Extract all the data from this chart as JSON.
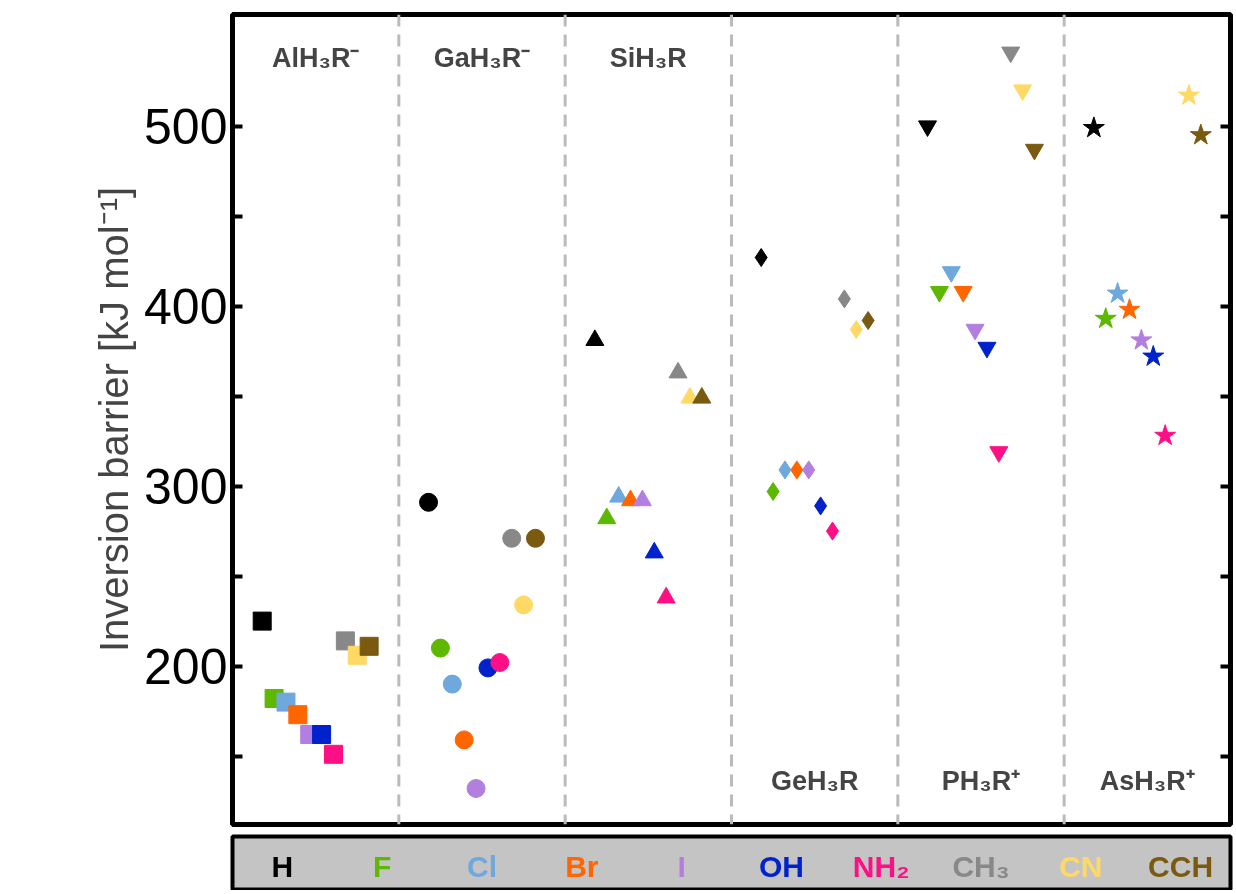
{
  "chart_data": {
    "type": "scatter",
    "ylabel": "Inversion barrier [kJ mol⁻¹]",
    "categories": [
      "AlH₃R⁻",
      "GaH₃R⁻",
      "SiH₃R",
      "GeH₃R",
      "PH₃R⁺",
      "AsH₃R⁺"
    ],
    "ylim": [
      112,
      562
    ],
    "yticks": [
      {
        "value": 150,
        "label": null
      },
      200,
      {
        "value": 250,
        "label": null
      },
      300,
      {
        "value": 350,
        "label": null
      },
      400,
      {
        "value": 450,
        "label": null
      },
      500
    ],
    "marker": [
      "square",
      "circle",
      "triangle",
      "diamond",
      "inverted_triangle",
      "star"
    ],
    "series": [
      {
        "name": "H",
        "color": "#000000",
        "values": [
          225,
          291,
          381,
          427,
          500,
          499
        ]
      },
      {
        "name": "F",
        "color": "#5cb800",
        "values": [
          182,
          210,
          282,
          297,
          408,
          393
        ]
      },
      {
        "name": "Cl",
        "color": "#6fa8dc",
        "values": [
          180,
          190,
          294,
          309,
          419,
          407
        ]
      },
      {
        "name": "Br",
        "color": "#ff6600",
        "values": [
          173,
          159,
          292,
          309,
          408,
          398
        ]
      },
      {
        "name": "I",
        "color": "#b27fe0",
        "values": [
          162,
          132,
          292,
          309,
          387,
          381
        ]
      },
      {
        "name": "OH",
        "color": "#0022cc",
        "values": [
          162,
          199,
          263,
          289,
          377,
          372
        ]
      },
      {
        "name": "NH₂",
        "color": "#ff0f85",
        "values": [
          151,
          202,
          238,
          275,
          319,
          328
        ]
      },
      {
        "name": "CH₃",
        "color": "#888888",
        "values": [
          214,
          271,
          363,
          404,
          541,
          null
        ]
      },
      {
        "name": "CN",
        "color": "#ffd966",
        "values": [
          206,
          234,
          349,
          387,
          520,
          517
        ]
      },
      {
        "name": "CCH",
        "color": "#7a5a10",
        "values": [
          211,
          271,
          349,
          392,
          487,
          495
        ]
      }
    ]
  }
}
